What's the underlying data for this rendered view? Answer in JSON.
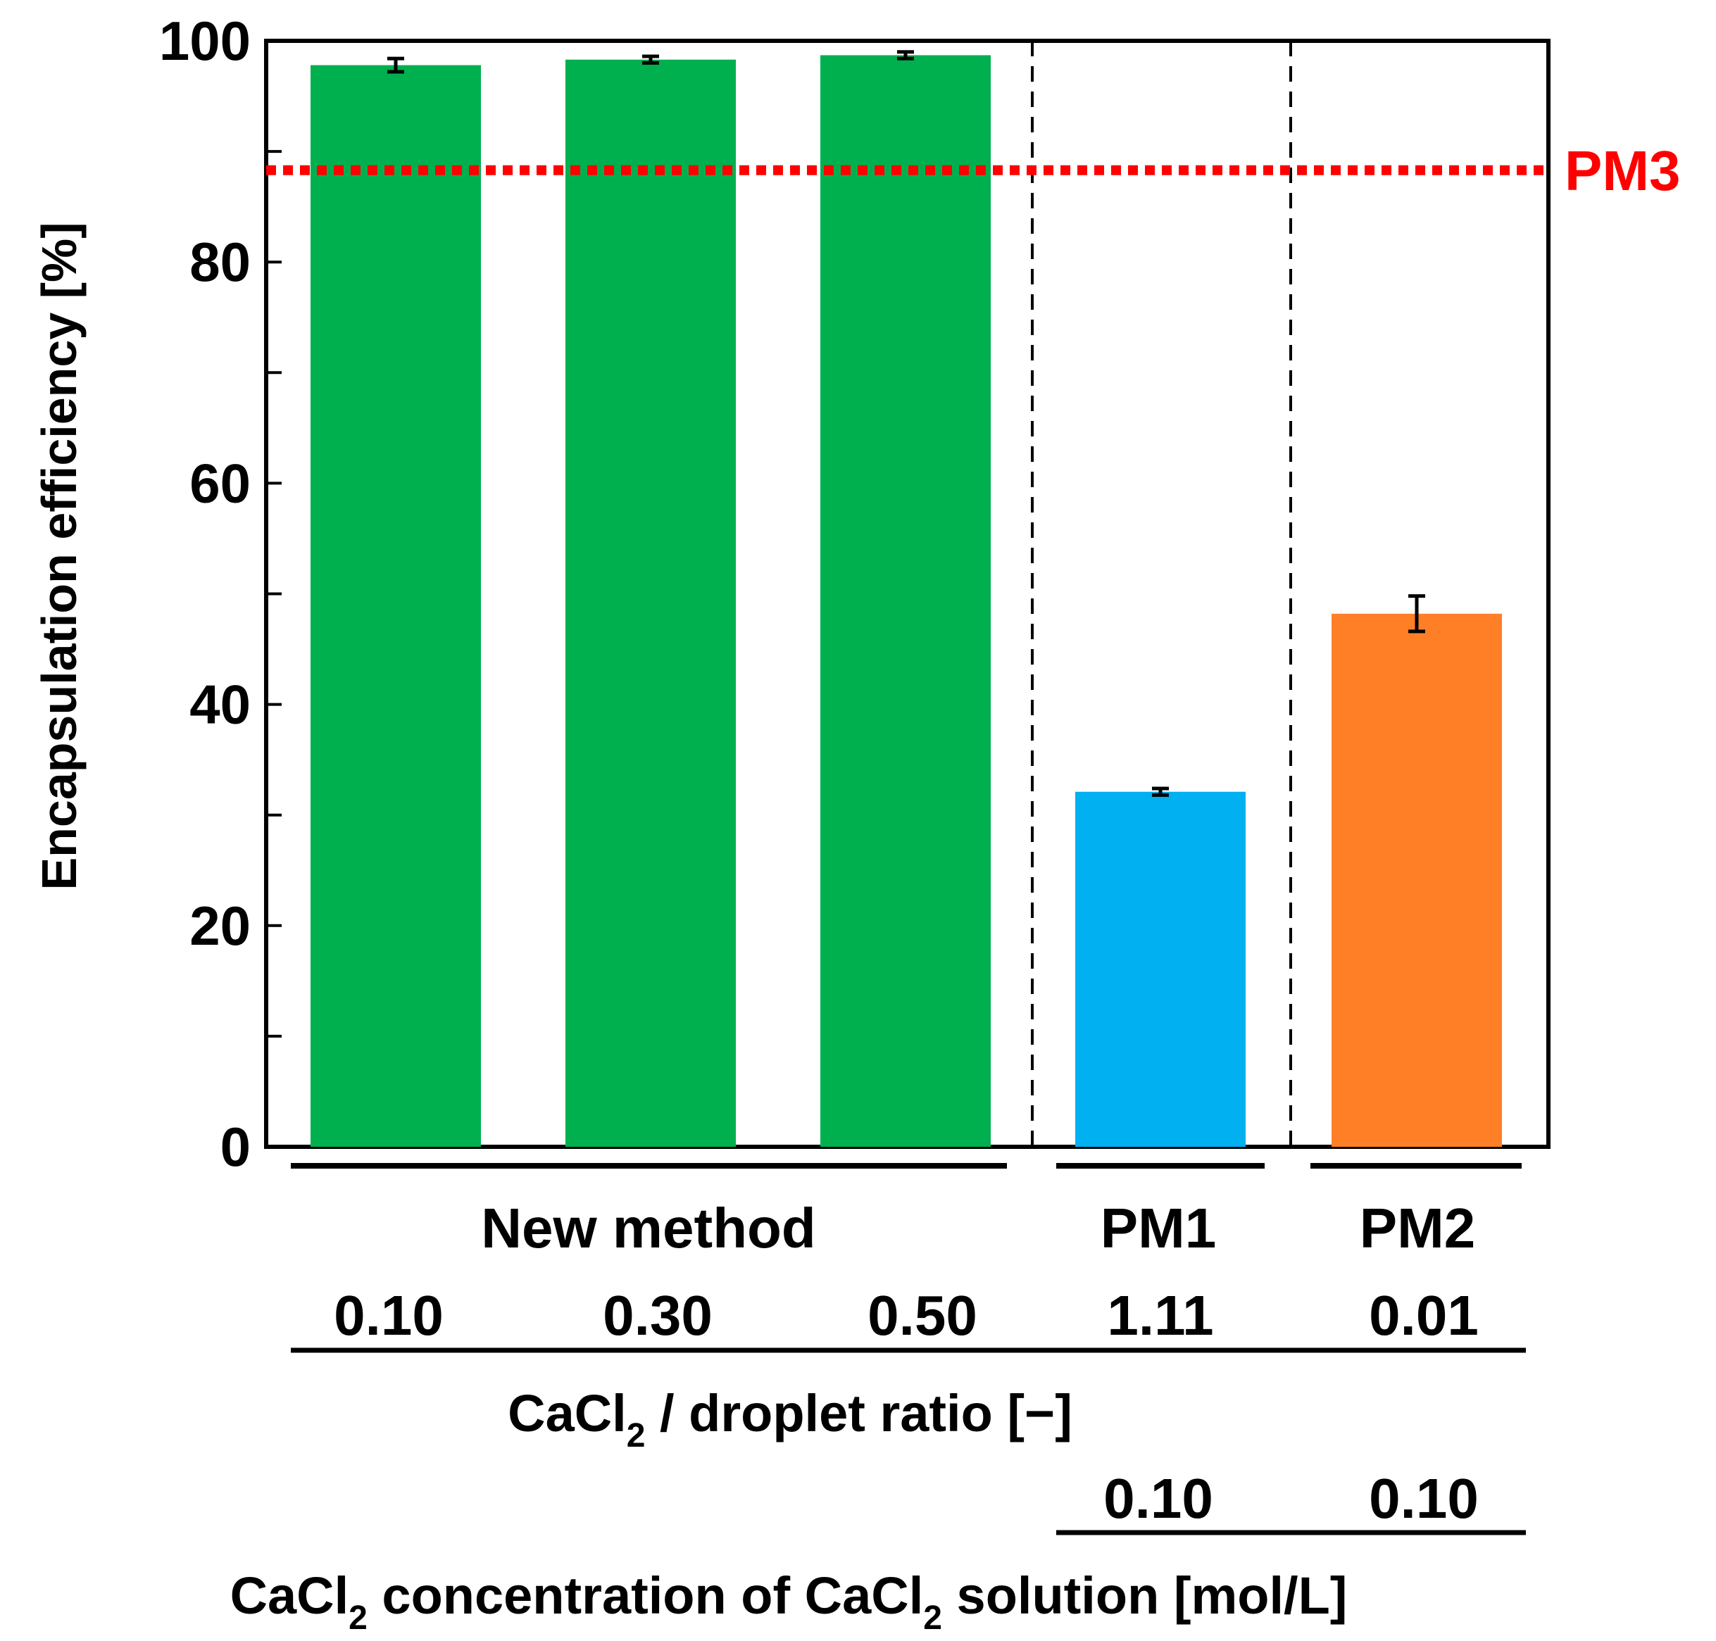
{
  "chart_data": {
    "type": "bar",
    "ylabel": "Encapsulation efficiency [%]",
    "ylim": [
      0,
      100
    ],
    "yticks": [
      "0",
      "20",
      "40",
      "60",
      "80",
      "100"
    ],
    "bars": [
      {
        "group": "New method",
        "ratio": "0.10",
        "value": 97.8,
        "error": 0.6,
        "color": "#00b04f"
      },
      {
        "group": "New method",
        "ratio": "0.30",
        "value": 98.3,
        "error": 0.3,
        "color": "#00b04f"
      },
      {
        "group": "New method",
        "ratio": "0.50",
        "value": 98.7,
        "error": 0.3,
        "color": "#00b04f"
      },
      {
        "group": "PM1",
        "ratio": "1.11",
        "value": 32.1,
        "error": 0.3,
        "color": "#00b0f0"
      },
      {
        "group": "PM2",
        "ratio": "0.01",
        "value": 48.2,
        "error": 1.6,
        "color": "#ff7f27"
      }
    ],
    "groups": [
      "New method",
      "PM1",
      "PM2"
    ],
    "reference_line": {
      "label": "PM3",
      "value": 88.3,
      "color": "#ff0000"
    },
    "ratio_axis_label": {
      "prefix": "CaCl",
      "sub": "2",
      "suffix": " / droplet ratio [−]"
    },
    "concentration_values": [
      "0.10",
      "0.10"
    ],
    "concentration_axis_label": {
      "p1": "CaCl",
      "s1": "2",
      "p2": " concentration of CaCl",
      "s2": "2",
      "p3": " solution [mol/L]"
    }
  }
}
